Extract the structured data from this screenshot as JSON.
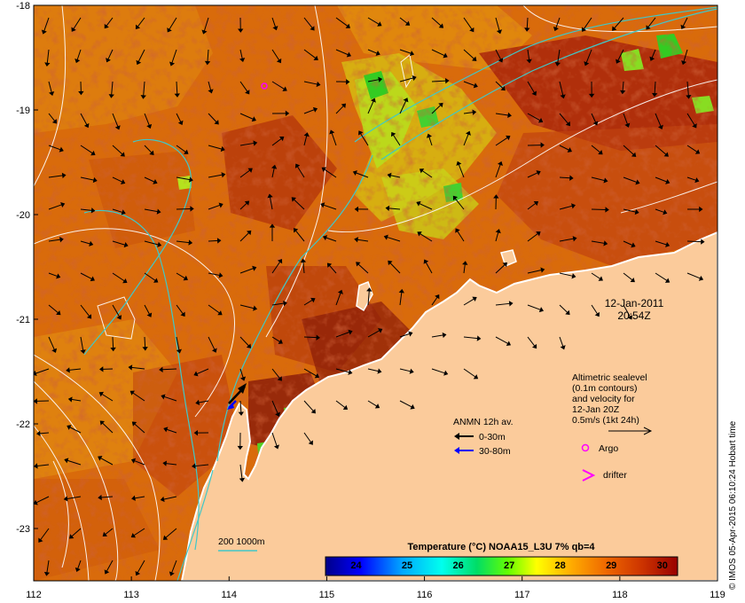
{
  "map": {
    "date": "12-Jan-2011",
    "time": "20:54Z",
    "credit": "© IMOS 05-Apr-2015 06:10:24 Hobart time",
    "x_ticks": [
      "112",
      "113",
      "114",
      "115",
      "116",
      "117",
      "118",
      "119"
    ],
    "y_ticks": [
      "-18",
      "-19",
      "-20",
      "-21",
      "-22",
      "-23"
    ],
    "lon_range": [
      112,
      119
    ],
    "lat_range": [
      -18,
      -23.5
    ]
  },
  "legend": {
    "altimetry_lines": [
      "Altimetric sealevel",
      "(0.1m contours)",
      "and velocity for",
      "12-Jan 20Z",
      "0.5m/s (1kt 24h)"
    ],
    "anmn_title": "ANMN 12h av.",
    "anmn_shallow": "0-30m",
    "anmn_deep": "30-80m",
    "argo": "Argo",
    "drifter": "drifter",
    "bathymetry": "200  1000m"
  },
  "colorbar": {
    "title": "Temperature (°C) NOAA15_L3U 7% qb=4",
    "ticks": [
      "24",
      "25",
      "26",
      "27",
      "28",
      "29",
      "30"
    ],
    "stops": [
      "#000088",
      "#0000ff",
      "#00aaff",
      "#00ffee",
      "#00dd66",
      "#66ff00",
      "#ffff00",
      "#ffaa00",
      "#ee6600",
      "#cc3300",
      "#990000"
    ]
  },
  "colors": {
    "land": "#fbcb9b",
    "sea_base": "#d96b0b",
    "sea_warm": "#a8250c",
    "sea_cool": "#e8a410",
    "sea_green": "#b5e21e",
    "bathymetry": "#40c8c8",
    "contour": "#ffffff",
    "argo": "#ff00ff",
    "anmn_shallow": "#000000",
    "anmn_deep": "#0000ff"
  }
}
